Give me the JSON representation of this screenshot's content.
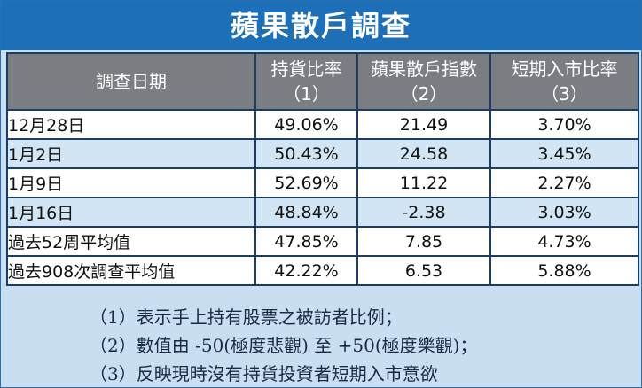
{
  "title": "蘋果散戶調查",
  "columns": [
    {
      "label": "調查日期",
      "sub": ""
    },
    {
      "label": "持貨比率",
      "sub": "（1）"
    },
    {
      "label": "蘋果散戶指數",
      "sub": "（2）"
    },
    {
      "label": "短期入市比率",
      "sub": "（3）"
    }
  ],
  "rows": [
    {
      "date": "12月28日",
      "holding": "49.06%",
      "index": "21.49",
      "short_term": "3.70%"
    },
    {
      "date": "1月2日",
      "holding": "50.43%",
      "index": "24.58",
      "short_term": "3.45%"
    },
    {
      "date": "1月9日",
      "holding": "52.69%",
      "index": "11.22",
      "short_term": "2.27%"
    },
    {
      "date": "1月16日",
      "holding": "48.84%",
      "index": "-2.38",
      "short_term": "3.03%"
    },
    {
      "date": "過去52周平均值",
      "holding": "47.85%",
      "index": "7.85",
      "short_term": "4.73%"
    },
    {
      "date": "過去908次調查平均值",
      "holding": "42.22%",
      "index": "6.53",
      "short_term": "5.88%"
    }
  ],
  "notes": [
    "（1）表示手上持有股票之被訪者比例；",
    "（2）數值由 -50(極度悲觀) 至 +50(極度樂觀)；",
    "（3）反映現時沒有持貨投資者短期入市意欲"
  ]
}
